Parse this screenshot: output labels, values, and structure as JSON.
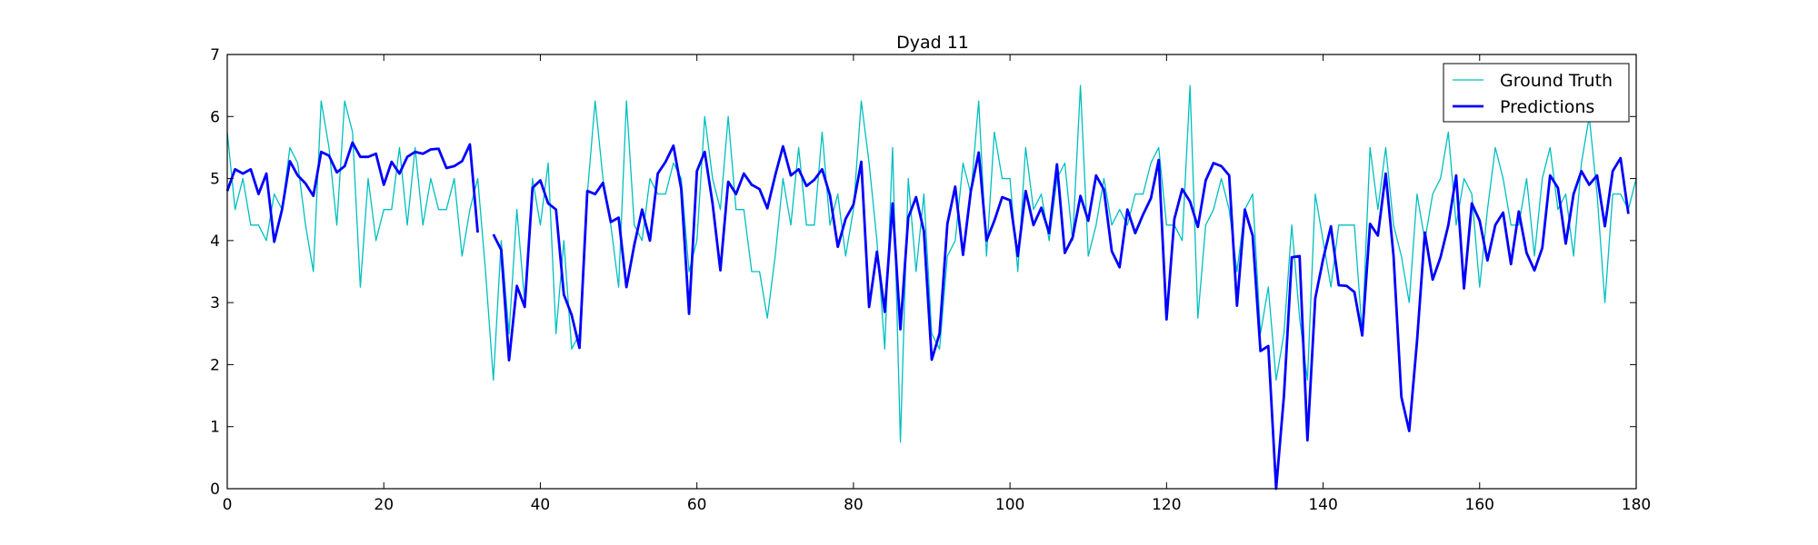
{
  "chart_data": {
    "type": "line",
    "title": "Dyad 11",
    "xlabel": "",
    "ylabel": "",
    "xlim": [
      0,
      180
    ],
    "ylim": [
      0,
      7
    ],
    "xticks": [
      0,
      20,
      40,
      60,
      80,
      100,
      120,
      140,
      160,
      180
    ],
    "yticks": [
      0,
      1,
      2,
      3,
      4,
      5,
      6,
      7
    ],
    "grid": false,
    "legend_position": "top-right",
    "series": [
      {
        "name": "Ground Truth",
        "color": "#00bfbf",
        "x": [
          0,
          1,
          2,
          3,
          4,
          5,
          6,
          7,
          8,
          9,
          10,
          11,
          12,
          13,
          14,
          15,
          16,
          17,
          18,
          19,
          20,
          21,
          22,
          23,
          24,
          25,
          26,
          27,
          28,
          29,
          30,
          31,
          32,
          33,
          34,
          35,
          36,
          37,
          38,
          39,
          40,
          41,
          42,
          43,
          44,
          45,
          46,
          47,
          48,
          49,
          50,
          51,
          52,
          53,
          54,
          55,
          56,
          57,
          58,
          59,
          60,
          61,
          62,
          63,
          64,
          65,
          66,
          67,
          68,
          69,
          70,
          71,
          72,
          73,
          74,
          75,
          76,
          77,
          78,
          79,
          80,
          81,
          82,
          83,
          84,
          85,
          86,
          87,
          88,
          89,
          90,
          91,
          92,
          93,
          94,
          95,
          96,
          97,
          98,
          99,
          100,
          101,
          102,
          103,
          104,
          105,
          106,
          107,
          108,
          109,
          110,
          111,
          112,
          113,
          114,
          115,
          116,
          117,
          118,
          119,
          120,
          121,
          122,
          123,
          124,
          125,
          126,
          127,
          128,
          129,
          130,
          131,
          132,
          133,
          134,
          135,
          136,
          137,
          138,
          139,
          140,
          141,
          142,
          143,
          144,
          145,
          146,
          147,
          148,
          149,
          150,
          151,
          152,
          153,
          154,
          155,
          156,
          157,
          158,
          159,
          160,
          161,
          162,
          163,
          164,
          165,
          166,
          167,
          168,
          169,
          170,
          171,
          172,
          173,
          174,
          175,
          176,
          177,
          178,
          179,
          180
        ],
        "values": [
          5.75,
          4.5,
          5.0,
          4.25,
          4.25,
          4.0,
          4.75,
          4.5,
          5.5,
          5.25,
          4.25,
          3.5,
          6.25,
          5.5,
          4.25,
          6.25,
          5.75,
          3.25,
          5.0,
          4.0,
          4.5,
          4.5,
          5.5,
          4.25,
          5.5,
          4.25,
          5.0,
          4.5,
          4.5,
          5.0,
          3.75,
          4.5,
          5.0,
          3.5,
          1.75,
          4.0,
          2.5,
          4.5,
          3.0,
          5.0,
          4.25,
          5.25,
          2.5,
          4.0,
          2.25,
          2.5,
          4.75,
          6.25,
          5.0,
          4.25,
          3.25,
          6.25,
          4.25,
          4.0,
          5.0,
          4.75,
          4.75,
          5.25,
          5.0,
          3.5,
          4.0,
          6.0,
          5.0,
          4.5,
          6.0,
          4.5,
          4.5,
          3.5,
          3.5,
          2.75,
          3.75,
          5.0,
          4.25,
          5.5,
          4.25,
          4.25,
          5.75,
          4.25,
          4.75,
          3.75,
          4.5,
          6.25,
          5.25,
          4.0,
          2.25,
          5.5,
          0.75,
          5.0,
          3.5,
          4.75,
          2.5,
          2.25,
          3.75,
          4.0,
          5.25,
          4.75,
          6.25,
          3.75,
          5.75,
          5.0,
          5.0,
          3.5,
          5.5,
          4.5,
          4.75,
          4.0,
          5.0,
          5.25,
          4.0,
          6.5,
          3.75,
          4.25,
          5.0,
          4.25,
          4.5,
          4.25,
          4.75,
          4.75,
          5.25,
          5.5,
          4.25,
          4.25,
          4.0,
          6.5,
          2.75,
          4.25,
          4.5,
          5.0,
          4.5,
          3.5,
          4.5,
          4.75,
          2.5,
          3.25,
          1.75,
          2.5,
          4.25,
          2.75,
          1.75,
          4.75,
          4.0,
          3.25,
          4.25,
          4.25,
          4.25,
          2.5,
          5.5,
          4.5,
          5.5,
          4.25,
          3.75,
          3.0,
          4.75,
          4.0,
          4.75,
          5.0,
          5.75,
          4.25,
          5.0,
          4.75,
          3.25,
          4.5,
          5.5,
          5.0,
          4.25,
          4.25,
          5.0,
          3.75,
          5.0,
          5.5,
          4.5,
          4.75,
          3.75,
          5.25,
          6.0,
          4.75,
          3.0,
          4.75,
          4.75,
          4.5,
          5.0
        ]
      },
      {
        "name": "Predictions",
        "color": "#0000ff",
        "x": [
          0,
          1,
          2,
          3,
          4,
          5,
          6,
          7,
          8,
          9,
          10,
          11,
          12,
          13,
          14,
          15,
          16,
          17,
          18,
          19,
          20,
          21,
          22,
          23,
          24,
          25,
          26,
          27,
          28,
          29,
          30,
          31,
          32,
          33,
          34,
          35,
          36,
          37,
          38,
          39,
          40,
          41,
          42,
          43,
          44,
          45,
          46,
          47,
          48,
          49,
          50,
          51,
          52,
          53,
          54,
          55,
          56,
          57,
          58,
          59,
          60,
          61,
          62,
          63,
          64,
          65,
          66,
          67,
          68,
          69,
          70,
          71,
          72,
          73,
          74,
          75,
          76,
          77,
          78,
          79,
          80,
          81,
          82,
          83,
          84,
          85,
          86,
          87,
          88,
          89,
          90,
          91,
          92,
          93,
          94,
          95,
          96,
          97,
          98,
          99,
          100,
          101,
          102,
          103,
          104,
          105,
          106,
          107,
          108,
          109,
          110,
          111,
          112,
          113,
          114,
          115,
          116,
          117,
          118,
          119,
          120,
          121,
          122,
          123,
          124,
          125,
          126,
          127,
          128,
          129,
          130,
          131,
          132,
          133,
          134,
          135,
          136,
          137,
          138,
          139,
          140,
          141,
          142,
          143,
          144,
          145,
          146,
          147,
          148,
          149,
          150,
          151,
          152,
          153,
          154,
          155,
          156,
          157,
          158,
          159,
          160,
          161,
          162,
          163,
          164,
          165,
          166,
          167,
          168,
          169,
          170,
          171,
          172,
          173,
          174,
          175,
          176,
          177,
          178,
          179,
          180
        ],
        "values": [
          4.8,
          5.15,
          5.08,
          5.15,
          4.75,
          5.08,
          3.98,
          4.5,
          5.28,
          5.05,
          4.92,
          4.72,
          5.43,
          5.37,
          5.1,
          5.2,
          5.58,
          5.35,
          5.35,
          5.4,
          4.9,
          5.27,
          5.08,
          5.35,
          5.43,
          5.4,
          5.47,
          5.48,
          5.17,
          5.2,
          5.28,
          5.55,
          4.13,
          null,
          4.1,
          3.85,
          2.07,
          3.27,
          2.93,
          4.85,
          4.97,
          4.6,
          4.5,
          3.13,
          2.8,
          2.27,
          4.8,
          4.75,
          4.93,
          4.3,
          4.37,
          3.25,
          3.93,
          4.5,
          4.0,
          5.08,
          5.27,
          5.53,
          4.83,
          2.82,
          5.12,
          5.43,
          4.6,
          3.52,
          4.95,
          4.75,
          5.08,
          4.9,
          4.83,
          4.52,
          5.05,
          5.52,
          5.05,
          5.15,
          4.88,
          4.98,
          5.15,
          4.73,
          3.9,
          4.35,
          4.58,
          5.27,
          2.93,
          3.82,
          2.85,
          4.6,
          2.57,
          4.37,
          4.7,
          4.15,
          2.08,
          2.5,
          4.27,
          4.87,
          3.77,
          4.8,
          5.42,
          4.0,
          4.32,
          4.7,
          4.65,
          3.75,
          4.8,
          4.25,
          4.53,
          4.12,
          5.23,
          3.8,
          4.05,
          4.72,
          4.32,
          5.05,
          4.82,
          3.83,
          3.57,
          4.5,
          4.12,
          4.42,
          4.68,
          5.3,
          2.73,
          4.35,
          4.83,
          4.63,
          4.22,
          4.97,
          5.25,
          5.2,
          5.05,
          2.95,
          4.5,
          4.08,
          2.22,
          2.3,
          0.0,
          1.5,
          3.73,
          3.75,
          0.78,
          3.07,
          3.7,
          4.23,
          3.28,
          3.27,
          3.17,
          2.47,
          4.27,
          4.08,
          5.08,
          3.75,
          1.48,
          0.93,
          2.38,
          4.13,
          3.37,
          3.73,
          4.25,
          5.05,
          3.23,
          4.6,
          4.32,
          3.68,
          4.25,
          4.45,
          3.62,
          4.47,
          3.8,
          3.52,
          3.88,
          5.05,
          4.85,
          3.95,
          4.75,
          5.12,
          4.9,
          5.05,
          4.23,
          5.12,
          5.33,
          4.43,
          null
        ]
      }
    ]
  }
}
